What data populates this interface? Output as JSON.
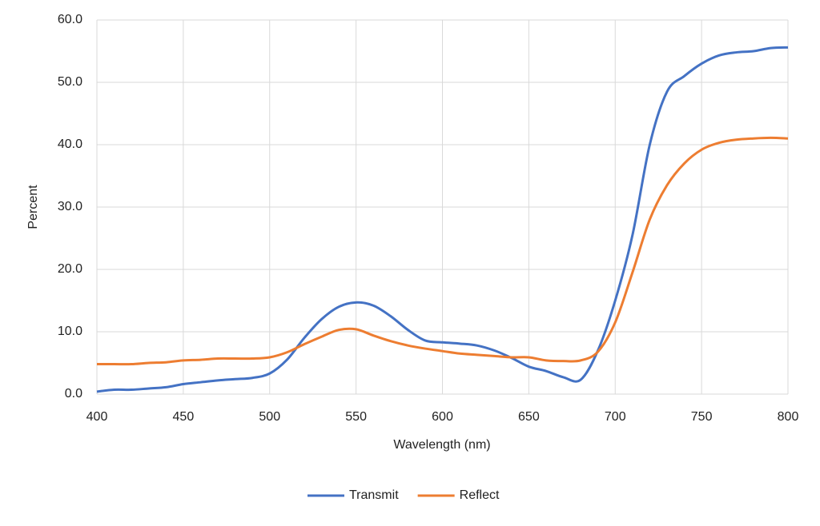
{
  "chart_data": {
    "type": "line",
    "x_label": "Wavelength (nm)",
    "y_label": "Percent",
    "x": [
      400,
      410,
      420,
      430,
      440,
      450,
      460,
      470,
      480,
      490,
      500,
      510,
      520,
      530,
      540,
      550,
      560,
      570,
      580,
      590,
      600,
      610,
      620,
      630,
      640,
      650,
      660,
      670,
      680,
      690,
      700,
      710,
      720,
      730,
      740,
      750,
      760,
      770,
      780,
      790,
      800
    ],
    "series": [
      {
        "name": "Transmit",
        "color": "#4472c4",
        "values": [
          0.4,
          0.7,
          0.7,
          0.9,
          1.1,
          1.6,
          1.9,
          2.2,
          2.4,
          2.6,
          3.3,
          5.5,
          9.0,
          12.0,
          14.0,
          14.7,
          14.2,
          12.5,
          10.3,
          8.6,
          8.3,
          8.1,
          7.8,
          7.0,
          5.8,
          4.4,
          3.7,
          2.7,
          2.3,
          7.0,
          15.0,
          25.5,
          40.0,
          48.5,
          51.0,
          53.0,
          54.3,
          54.8,
          55.0,
          55.5,
          55.6
        ]
      },
      {
        "name": "Reflect",
        "color": "#ed7d31",
        "values": [
          4.8,
          4.8,
          4.8,
          5.0,
          5.1,
          5.4,
          5.5,
          5.7,
          5.7,
          5.7,
          5.9,
          6.7,
          8.0,
          9.2,
          10.3,
          10.4,
          9.4,
          8.5,
          7.8,
          7.3,
          6.9,
          6.5,
          6.3,
          6.1,
          5.9,
          5.9,
          5.4,
          5.3,
          5.4,
          6.8,
          11.5,
          19.5,
          28.0,
          33.5,
          37.0,
          39.2,
          40.3,
          40.8,
          41.0,
          41.1,
          41.0
        ]
      }
    ],
    "xlim": [
      400,
      800
    ],
    "xticks": [
      400,
      450,
      500,
      550,
      600,
      650,
      700,
      750,
      800
    ],
    "ylim": [
      0,
      60
    ],
    "yticks": [
      {
        "value": 0,
        "label": "0.0"
      },
      {
        "value": 10,
        "label": "10.0"
      },
      {
        "value": 20,
        "label": "20.0"
      },
      {
        "value": 30,
        "label": "30.0"
      },
      {
        "value": 40,
        "label": "40.0"
      },
      {
        "value": 50,
        "label": "50.0"
      },
      {
        "value": 60,
        "label": "60.0"
      }
    ],
    "grid": true,
    "legend": "bottom"
  }
}
